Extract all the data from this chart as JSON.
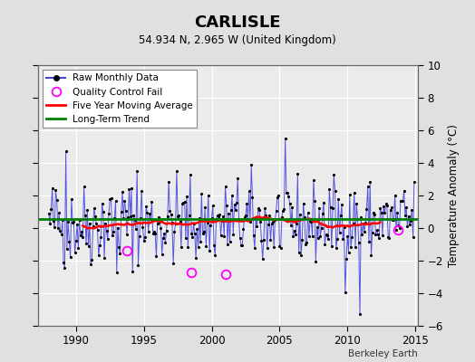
{
  "title": "CARLISLE",
  "subtitle": "54.934 N, 2.965 W (United Kingdom)",
  "ylabel": "Temperature Anomaly (°C)",
  "watermark": "Berkeley Earth",
  "ylim": [
    -6,
    10
  ],
  "yticks": [
    -6,
    -4,
    -2,
    0,
    2,
    4,
    6,
    8,
    10
  ],
  "xlim": [
    1987.2,
    2015.2
  ],
  "xticks": [
    1990,
    1995,
    2000,
    2005,
    2010,
    2015
  ],
  "background_color": "#e0e0e0",
  "plot_background": "#ebebeb",
  "grid_color": "#ffffff",
  "long_term_trend_level": 0.55,
  "line_color": "#4444dd",
  "qc_fail_times": [
    1993.75,
    1998.5,
    2001.0,
    2013.75
  ],
  "qc_fail_vals": [
    -1.4,
    -2.7,
    -2.85,
    -0.1
  ],
  "seed": 42
}
